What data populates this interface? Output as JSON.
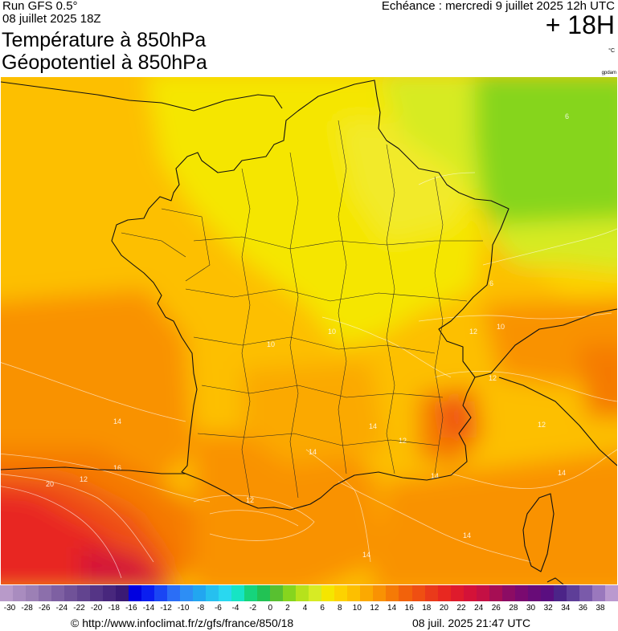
{
  "header": {
    "run": "Run GFS 0.5°",
    "run_date": "08 juillet 2025 18Z",
    "echeance": "Echéance : mercredi 9 juillet 2025 12h UTC",
    "offset": "+ 18H",
    "title_line1": "Température à 850hPa",
    "title_line2": "Géopotentiel à 850hPa",
    "unit": "°C",
    "credit_small": "gpdam"
  },
  "map": {
    "region": "France",
    "field": "temperature-850hPa",
    "contour_labels": [
      "6",
      "6",
      "10",
      "10",
      "10",
      "12",
      "12",
      "12",
      "12",
      "12",
      "12",
      "14",
      "14",
      "14",
      "14",
      "14",
      "14",
      "14",
      "16",
      "20"
    ],
    "colors": {
      "coolest_green": "#86d51e",
      "light_green": "#d7eb24",
      "yellow": "#f5e600",
      "light_orange": "#fdbf00",
      "orange": "#f9a003",
      "dark_orange": "#f57a06",
      "red_orange": "#ef4f12",
      "red": "#e82820",
      "crimson": "#d41238"
    }
  },
  "legend": {
    "colors": [
      "#b89ac9",
      "#a98cbf",
      "#9c80b5",
      "#8c6fab",
      "#7e60a2",
      "#705298",
      "#62448f",
      "#553586",
      "#48277d",
      "#3a1a74",
      "#0000e0",
      "#0a1ef0",
      "#1a46f4",
      "#2b6ef6",
      "#2d8ef5",
      "#22a6f0",
      "#26c0ef",
      "#29d8f0",
      "#16e4c4",
      "#16d47c",
      "#22c254",
      "#58c030",
      "#86d51e",
      "#b6e21c",
      "#d7eb24",
      "#f5e600",
      "#fdd200",
      "#fdbf00",
      "#fba901",
      "#f99203",
      "#f57a06",
      "#f2620b",
      "#ef4f12",
      "#ea3a1a",
      "#e82820",
      "#df1b2c",
      "#d41238",
      "#c41044",
      "#a60e54",
      "#8c0c64",
      "#7a0a70",
      "#680c78",
      "#5a0e80",
      "#4c2488",
      "#5e3e98",
      "#7a5aaa",
      "#9a78bd",
      "#bb99cf"
    ],
    "ticks": [
      "-30",
      "-28",
      "-26",
      "-24",
      "-22",
      "-20",
      "-18",
      "-16",
      "-14",
      "-12",
      "-10",
      "-8",
      "-6",
      "-4",
      "-2",
      "0",
      "2",
      "4",
      "6",
      "8",
      "10",
      "12",
      "14",
      "16",
      "18",
      "20",
      "22",
      "24",
      "26",
      "28",
      "30",
      "32",
      "34",
      "36",
      "38"
    ]
  },
  "footer": {
    "url": "© http://www.infoclimat.fr/z/gfs/france/850/18",
    "generated": "08 juil. 2025 21:47 UTC"
  }
}
